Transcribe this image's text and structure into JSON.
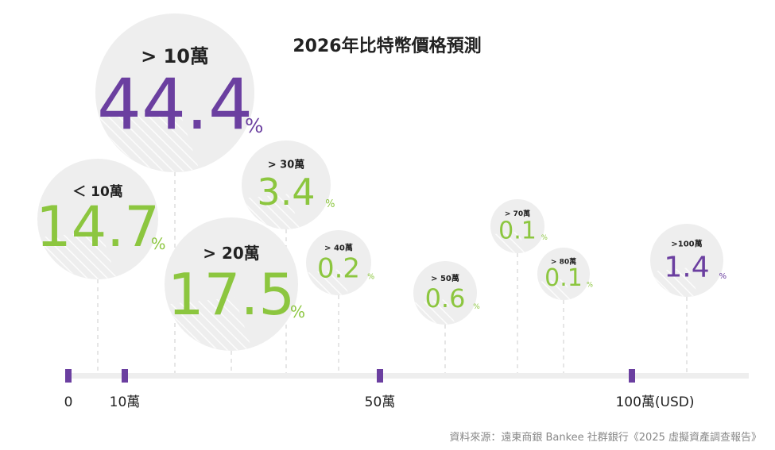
{
  "chart_data": {
    "type": "bubble",
    "title": "2026年比特幣價格預測",
    "unit": "%",
    "series": [
      {
        "category": "＜ 10萬",
        "value": 14.7,
        "color": "#8cc63f"
      },
      {
        "category": "> 10萬",
        "value": 44.4,
        "color": "#6b3fa0"
      },
      {
        "category": "> 20萬",
        "value": 17.5,
        "color": "#8cc63f"
      },
      {
        "category": "> 30萬",
        "value": 3.4,
        "color": "#8cc63f"
      },
      {
        "category": "> 40萬",
        "value": 0.2,
        "color": "#8cc63f"
      },
      {
        "category": "> 50萬",
        "value": 0.6,
        "color": "#8cc63f"
      },
      {
        "category": "> 70萬",
        "value": 0.1,
        "color": "#8cc63f"
      },
      {
        "category": "> 80萬",
        "value": 0.1,
        "color": "#8cc63f"
      },
      {
        "category": ">100萬",
        "value": 1.4,
        "color": "#6b3fa0"
      }
    ],
    "axis_ticks": [
      "0",
      "10萬",
      "50萬",
      "100萬(USD)"
    ],
    "colors": {
      "bubble_fill": "#eeeeee",
      "axis": "#eeeeee",
      "tick": "#6b3fa0",
      "gridline": "#cccccc"
    }
  },
  "source": "資料來源：遠東商銀 Bankee 社群銀行《2025 虛擬資產調查報告》"
}
